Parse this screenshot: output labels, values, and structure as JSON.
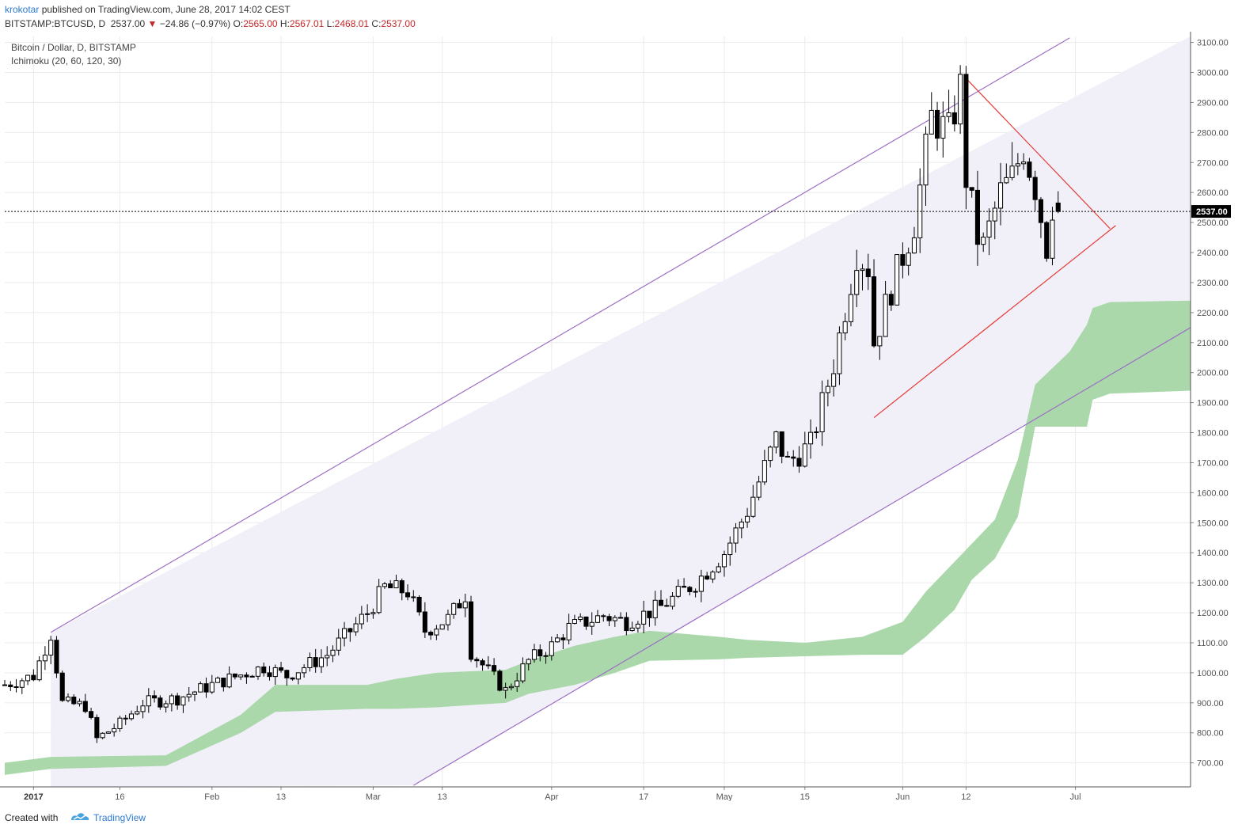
{
  "header": {
    "user": "krokotar",
    "published": "published on TradingView.com, June 28, 2017 14:02 CEST",
    "symbol": "BITSTAMP:BTCUSD, D",
    "last": "2537.00",
    "change": "−24.86 (−0.97%)",
    "o_label": "O:",
    "o_value": "2565.00",
    "h_label": "H:",
    "h_value": "2567.01",
    "l_label": "L:",
    "l_value": "2468.01",
    "c_label": "C:",
    "c_value": "2537.00"
  },
  "legend": {
    "line1": "Bitcoin / Dollar, D, BITSTAMP",
    "line2": "Ichimoku (20, 60, 120, 30)"
  },
  "footer": {
    "created": "Created with",
    "brand": "TradingView"
  },
  "colors": {
    "channel": "#9c6fc4",
    "channel_fill": "#f1eff8",
    "triangle": "#e53935",
    "cloud": "#a5d6a7",
    "candle_up": "#ffffff",
    "candle_down": "#000000",
    "price_tag": "#000000"
  },
  "chart_data": {
    "type": "candlestick",
    "ylim": [
      620,
      3120
    ],
    "y_ticks": [
      700,
      800,
      900,
      1000,
      1100,
      1200,
      1300,
      1400,
      1500,
      1600,
      1700,
      1800,
      1900,
      2000,
      2100,
      2200,
      2300,
      2400,
      2500,
      2600,
      2700,
      2800,
      2900,
      3000,
      3100
    ],
    "y_tick_labels": [
      "700.00",
      "800.00",
      "900.00",
      "1000.00",
      "1100.00",
      "1200.00",
      "1300.00",
      "1400.00",
      "1500.00",
      "1600.00",
      "1700.00",
      "1800.00",
      "1900.00",
      "2000.00",
      "2100.00",
      "2200.00",
      "2300.00",
      "2400.00",
      "2500.00",
      "2600.00",
      "2700.00",
      "2800.00",
      "2900.00",
      "3000.00",
      "3100.00"
    ],
    "x_labels": [
      {
        "label": "2017",
        "date": "2017-01-01",
        "bold": true
      },
      {
        "label": "16",
        "date": "2017-01-16"
      },
      {
        "label": "Feb",
        "date": "2017-02-01"
      },
      {
        "label": "13",
        "date": "2017-02-13"
      },
      {
        "label": "Mar",
        "date": "2017-03-01"
      },
      {
        "label": "13",
        "date": "2017-03-13"
      },
      {
        "label": "Apr",
        "date": "2017-04-01"
      },
      {
        "label": "17",
        "date": "2017-04-17"
      },
      {
        "label": "May",
        "date": "2017-05-01"
      },
      {
        "label": "15",
        "date": "2017-05-15"
      },
      {
        "label": "Jun",
        "date": "2017-06-01"
      },
      {
        "label": "12",
        "date": "2017-06-12"
      },
      {
        "label": "Jul",
        "date": "2017-07-01"
      }
    ],
    "x_range": [
      "2016-12-27",
      "2017-07-21"
    ],
    "grid": true,
    "last_price": 2537.0,
    "last_price_label": "2537.00",
    "anchors": [
      [
        "2016-12-27",
        960
      ],
      [
        "2017-01-01",
        990
      ],
      [
        "2017-01-04",
        1130
      ],
      [
        "2017-01-06",
        900
      ],
      [
        "2017-01-10",
        890
      ],
      [
        "2017-01-12",
        780
      ],
      [
        "2017-01-16",
        830
      ],
      [
        "2017-01-20",
        900
      ],
      [
        "2017-01-26",
        915
      ],
      [
        "2017-02-01",
        960
      ],
      [
        "2017-02-10",
        1020
      ],
      [
        "2017-02-14",
        990
      ],
      [
        "2017-02-21",
        1060
      ],
      [
        "2017-02-28",
        1200
      ],
      [
        "2017-03-03",
        1285
      ],
      [
        "2017-03-07",
        1270
      ],
      [
        "2017-03-10",
        1140
      ],
      [
        "2017-03-14",
        1180
      ],
      [
        "2017-03-17",
        1260
      ],
      [
        "2017-03-18",
        1070
      ],
      [
        "2017-03-24",
        940
      ],
      [
        "2017-03-28",
        1040
      ],
      [
        "2017-04-01",
        1090
      ],
      [
        "2017-04-04",
        1150
      ],
      [
        "2017-04-10",
        1190
      ],
      [
        "2017-04-14",
        1170
      ],
      [
        "2017-04-20",
        1220
      ],
      [
        "2017-04-26",
        1300
      ],
      [
        "2017-05-01",
        1400
      ],
      [
        "2017-05-05",
        1540
      ],
      [
        "2017-05-10",
        1780
      ],
      [
        "2017-05-12",
        1700
      ],
      [
        "2017-05-16",
        1760
      ],
      [
        "2017-05-20",
        2030
      ],
      [
        "2017-05-24",
        2400
      ],
      [
        "2017-05-26",
        2350
      ],
      [
        "2017-05-27",
        2100
      ],
      [
        "2017-05-30",
        2280
      ],
      [
        "2017-06-03",
        2500
      ],
      [
        "2017-06-06",
        2850
      ],
      [
        "2017-06-09",
        2800
      ],
      [
        "2017-06-11",
        2950
      ],
      [
        "2017-06-12",
        2650
      ],
      [
        "2017-06-14",
        2450
      ],
      [
        "2017-06-15",
        2420
      ],
      [
        "2017-06-18",
        2600
      ],
      [
        "2017-06-20",
        2650
      ],
      [
        "2017-06-22",
        2750
      ],
      [
        "2017-06-24",
        2620
      ],
      [
        "2017-06-26",
        2420
      ],
      [
        "2017-06-27",
        2560
      ],
      [
        "2017-06-28",
        2537
      ]
    ],
    "cloud": {
      "upper": [
        [
          "2016-12-27",
          700
        ],
        [
          "2017-01-04",
          720
        ],
        [
          "2017-01-24",
          725
        ],
        [
          "2017-02-06",
          860
        ],
        [
          "2017-02-12",
          960
        ],
        [
          "2017-02-28",
          960
        ],
        [
          "2017-03-05",
          980
        ],
        [
          "2017-03-12",
          1000
        ],
        [
          "2017-03-24",
          1010
        ],
        [
          "2017-03-28",
          1040
        ],
        [
          "2017-04-05",
          1090
        ],
        [
          "2017-04-12",
          1120
        ],
        [
          "2017-04-18",
          1140
        ],
        [
          "2017-04-30",
          1120
        ],
        [
          "2017-05-05",
          1110
        ],
        [
          "2017-05-15",
          1100
        ],
        [
          "2017-05-25",
          1120
        ],
        [
          "2017-06-01",
          1170
        ],
        [
          "2017-06-05",
          1270
        ],
        [
          "2017-06-10",
          1370
        ],
        [
          "2017-06-13",
          1430
        ],
        [
          "2017-06-17",
          1510
        ],
        [
          "2017-06-21",
          1710
        ],
        [
          "2017-06-24",
          1960
        ],
        [
          "2017-06-30",
          2070
        ],
        [
          "2017-07-03",
          2160
        ],
        [
          "2017-07-04",
          2215
        ],
        [
          "2017-07-07",
          2235
        ],
        [
          "2017-07-21",
          2240
        ]
      ],
      "lower": [
        [
          "2016-12-27",
          660
        ],
        [
          "2017-01-04",
          680
        ],
        [
          "2017-01-24",
          690
        ],
        [
          "2017-02-06",
          800
        ],
        [
          "2017-02-12",
          870
        ],
        [
          "2017-02-28",
          880
        ],
        [
          "2017-03-05",
          880
        ],
        [
          "2017-03-12",
          885
        ],
        [
          "2017-03-24",
          900
        ],
        [
          "2017-03-28",
          930
        ],
        [
          "2017-04-05",
          960
        ],
        [
          "2017-04-12",
          1000
        ],
        [
          "2017-04-18",
          1040
        ],
        [
          "2017-04-30",
          1045
        ],
        [
          "2017-05-05",
          1050
        ],
        [
          "2017-05-15",
          1055
        ],
        [
          "2017-05-25",
          1060
        ],
        [
          "2017-06-01",
          1060
        ],
        [
          "2017-06-05",
          1120
        ],
        [
          "2017-06-10",
          1210
        ],
        [
          "2017-06-13",
          1310
        ],
        [
          "2017-06-17",
          1380
        ],
        [
          "2017-06-21",
          1520
        ],
        [
          "2017-06-24",
          1820
        ],
        [
          "2017-06-30",
          1820
        ],
        [
          "2017-07-03",
          1820
        ],
        [
          "2017-07-04",
          1910
        ],
        [
          "2017-07-07",
          1930
        ],
        [
          "2017-07-21",
          1940
        ]
      ]
    },
    "channel_upper": [
      [
        "2017-01-04",
        1135
      ],
      [
        "2017-06-30",
        3115
      ]
    ],
    "channel_lower": [
      [
        "2017-03-08",
        625
      ],
      [
        "2017-07-21",
        2150
      ]
    ],
    "triangle_upper": [
      [
        "2017-06-12",
        2980
      ],
      [
        "2017-07-07",
        2480
      ]
    ],
    "triangle_lower": [
      [
        "2017-05-27",
        1850
      ],
      [
        "2017-07-08",
        2490
      ]
    ]
  }
}
